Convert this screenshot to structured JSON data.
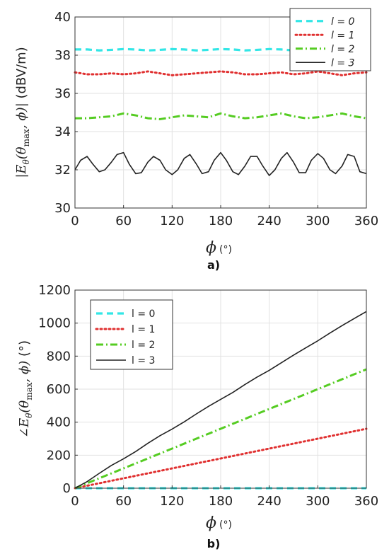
{
  "chart_data": [
    {
      "type": "line",
      "panel_label": "a)",
      "xlabel": "ϕ",
      "xlabel_unit": "(°)",
      "ylabel_math": "|E",
      "ylabel_math_sub": "θ",
      "ylabel_math_args": "(θ",
      "ylabel_math_args_sub": "max",
      "ylabel_math_tail": ", ϕ)|",
      "ylabel_unit": "(dBV/m)",
      "xlim": [
        0,
        360
      ],
      "ylim": [
        30,
        40
      ],
      "xticks": [
        "0",
        "60",
        "120",
        "180",
        "240",
        "300",
        "360"
      ],
      "yticks": [
        "30",
        "32",
        "34",
        "36",
        "38",
        "40"
      ],
      "grid": true,
      "legend": "top-right",
      "legend_italic": true,
      "series": [
        {
          "name": "l = 0",
          "color": "#33e6e6",
          "dash": "dashed",
          "x": [
            0,
            15,
            30,
            45,
            60,
            75,
            90,
            105,
            120,
            135,
            150,
            165,
            180,
            195,
            210,
            225,
            240,
            255,
            270,
            285,
            300,
            315,
            330,
            345,
            360
          ],
          "y": [
            38.3,
            38.3,
            38.25,
            38.28,
            38.32,
            38.3,
            38.25,
            38.28,
            38.32,
            38.3,
            38.25,
            38.28,
            38.32,
            38.3,
            38.25,
            38.28,
            38.32,
            38.3,
            38.25,
            38.28,
            38.32,
            38.3,
            38.25,
            38.28,
            38.3
          ]
        },
        {
          "name": "l = 1",
          "color": "#e03030",
          "dash": "dotted",
          "x": [
            0,
            15,
            30,
            45,
            60,
            75,
            90,
            105,
            120,
            135,
            150,
            165,
            180,
            195,
            210,
            225,
            240,
            255,
            270,
            285,
            300,
            315,
            330,
            345,
            360
          ],
          "y": [
            37.1,
            37.0,
            37.0,
            37.05,
            37.0,
            37.05,
            37.15,
            37.05,
            36.95,
            37.0,
            37.05,
            37.1,
            37.15,
            37.1,
            37.0,
            37.0,
            37.05,
            37.1,
            37.0,
            37.05,
            37.15,
            37.05,
            36.95,
            37.05,
            37.1
          ]
        },
        {
          "name": "l = 2",
          "color": "#55cc22",
          "dash": "dashdot",
          "x": [
            0,
            15,
            30,
            45,
            60,
            75,
            90,
            105,
            120,
            135,
            150,
            165,
            180,
            195,
            210,
            225,
            240,
            255,
            270,
            285,
            300,
            315,
            330,
            345,
            360
          ],
          "y": [
            34.7,
            34.7,
            34.75,
            34.8,
            34.95,
            34.85,
            34.7,
            34.65,
            34.75,
            34.85,
            34.8,
            34.75,
            34.95,
            34.8,
            34.7,
            34.75,
            34.85,
            34.95,
            34.8,
            34.7,
            34.75,
            34.85,
            34.95,
            34.8,
            34.7
          ]
        },
        {
          "name": "l = 3",
          "color": "#222222",
          "dash": "solid",
          "x": [
            0,
            7,
            15,
            22,
            30,
            37,
            45,
            52,
            60,
            67,
            75,
            82,
            90,
            97,
            105,
            112,
            120,
            127,
            135,
            142,
            150,
            157,
            165,
            172,
            180,
            187,
            195,
            202,
            210,
            217,
            225,
            232,
            240,
            247,
            255,
            262,
            270,
            277,
            285,
            292,
            300,
            307,
            315,
            322,
            330,
            337,
            345,
            352,
            360
          ],
          "y": [
            32.0,
            32.5,
            32.7,
            32.3,
            31.9,
            32.0,
            32.4,
            32.8,
            32.9,
            32.3,
            31.8,
            31.85,
            32.4,
            32.7,
            32.5,
            32.0,
            31.75,
            32.0,
            32.6,
            32.8,
            32.3,
            31.8,
            31.9,
            32.5,
            32.9,
            32.5,
            31.9,
            31.75,
            32.2,
            32.7,
            32.7,
            32.2,
            31.7,
            32.0,
            32.6,
            32.9,
            32.4,
            31.85,
            31.85,
            32.5,
            32.85,
            32.6,
            32.0,
            31.8,
            32.2,
            32.8,
            32.7,
            31.9,
            31.8
          ]
        }
      ]
    },
    {
      "type": "line",
      "panel_label": "b)",
      "xlabel": "ϕ",
      "xlabel_unit": "(°)",
      "ylabel_math": "∠E",
      "ylabel_math_sub": "θ",
      "ylabel_math_args": "(θ",
      "ylabel_math_args_sub": "max",
      "ylabel_math_tail": ", ϕ)",
      "ylabel_unit": "(°)",
      "xlim": [
        0,
        360
      ],
      "ylim": [
        0,
        1200
      ],
      "xticks": [
        "0",
        "60",
        "120",
        "180",
        "240",
        "300",
        "360"
      ],
      "yticks": [
        "0",
        "200",
        "400",
        "600",
        "800",
        "1000",
        "1200"
      ],
      "grid": true,
      "legend": "top-left",
      "legend_italic": false,
      "series": [
        {
          "name": "l = 0",
          "color": "#33e6e6",
          "dash": "dashed",
          "x": [
            0,
            360
          ],
          "y": [
            0,
            0
          ]
        },
        {
          "name": "l = 1",
          "color": "#e03030",
          "dash": "dotted",
          "x": [
            0,
            360
          ],
          "y": [
            0,
            360
          ]
        },
        {
          "name": "l = 2",
          "color": "#55cc22",
          "dash": "dashdot",
          "x": [
            0,
            360
          ],
          "y": [
            0,
            720
          ]
        },
        {
          "name": "l = 3",
          "color": "#222222",
          "dash": "solid",
          "x": [
            0,
            15,
            30,
            45,
            60,
            75,
            90,
            105,
            120,
            135,
            150,
            165,
            180,
            195,
            210,
            225,
            240,
            255,
            270,
            285,
            300,
            315,
            330,
            345,
            360
          ],
          "y": [
            0,
            40,
            90,
            138,
            178,
            222,
            272,
            318,
            358,
            402,
            450,
            496,
            538,
            580,
            628,
            673,
            714,
            760,
            806,
            850,
            893,
            940,
            985,
            1028,
            1070
          ]
        }
      ]
    }
  ]
}
